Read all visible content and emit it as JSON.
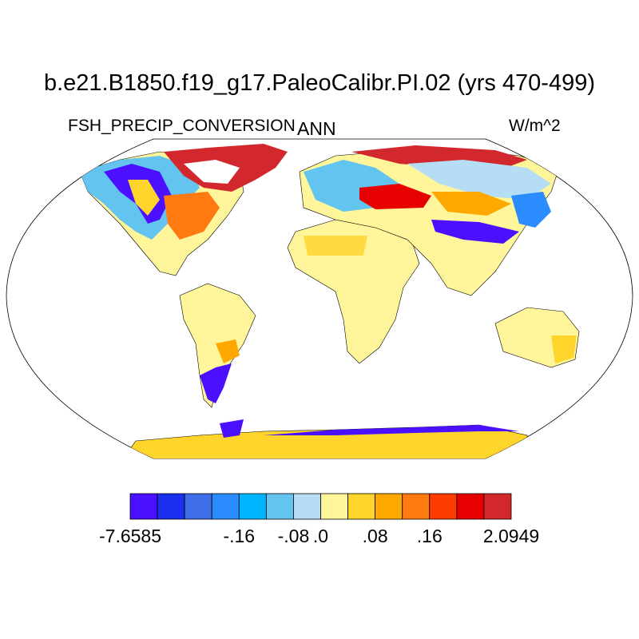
{
  "plot": {
    "title": "b.e21.B1850.f19_g17.PaleoCalibr.PI.02 (yrs 470-499)",
    "left_string": "FSH_PRECIP_CONVERSION",
    "center_string": "ANN",
    "right_string": "W/m^2"
  },
  "colorbar": {
    "colors": [
      "#4a10ff",
      "#1a30ee",
      "#3f6fe8",
      "#2a8cff",
      "#00b5ff",
      "#63c4f0",
      "#b5ddf4",
      "#fff59a",
      "#ffd52b",
      "#ffa800",
      "#ff7a10",
      "#ff3c00",
      "#e60000",
      "#d2272c"
    ],
    "labels": [
      "-7.6585",
      "-.16",
      "-.08",
      ".0",
      ".08",
      ".16",
      "2.0949"
    ]
  },
  "map": {
    "projection": "Robinson",
    "ocean_color": "#ffffff",
    "regions": [
      {
        "name": "north-america-west",
        "color": "#ffd52b"
      },
      {
        "name": "greenland",
        "color": "#d2272c"
      },
      {
        "name": "north-america-interior",
        "color": "#fff59a"
      },
      {
        "name": "south-america",
        "color": "#fff59a"
      },
      {
        "name": "africa",
        "color": "#fff59a"
      },
      {
        "name": "europe-north",
        "color": "#63c4f0"
      },
      {
        "name": "siberia-north",
        "color": "#d2272c"
      },
      {
        "name": "central-asia",
        "color": "#e60000"
      },
      {
        "name": "asia-band",
        "color": "#4a10ff"
      },
      {
        "name": "southern-asia",
        "color": "#fff59a"
      },
      {
        "name": "australia",
        "color": "#fff59a"
      },
      {
        "name": "antarctica",
        "color": "#ffd52b"
      }
    ]
  }
}
